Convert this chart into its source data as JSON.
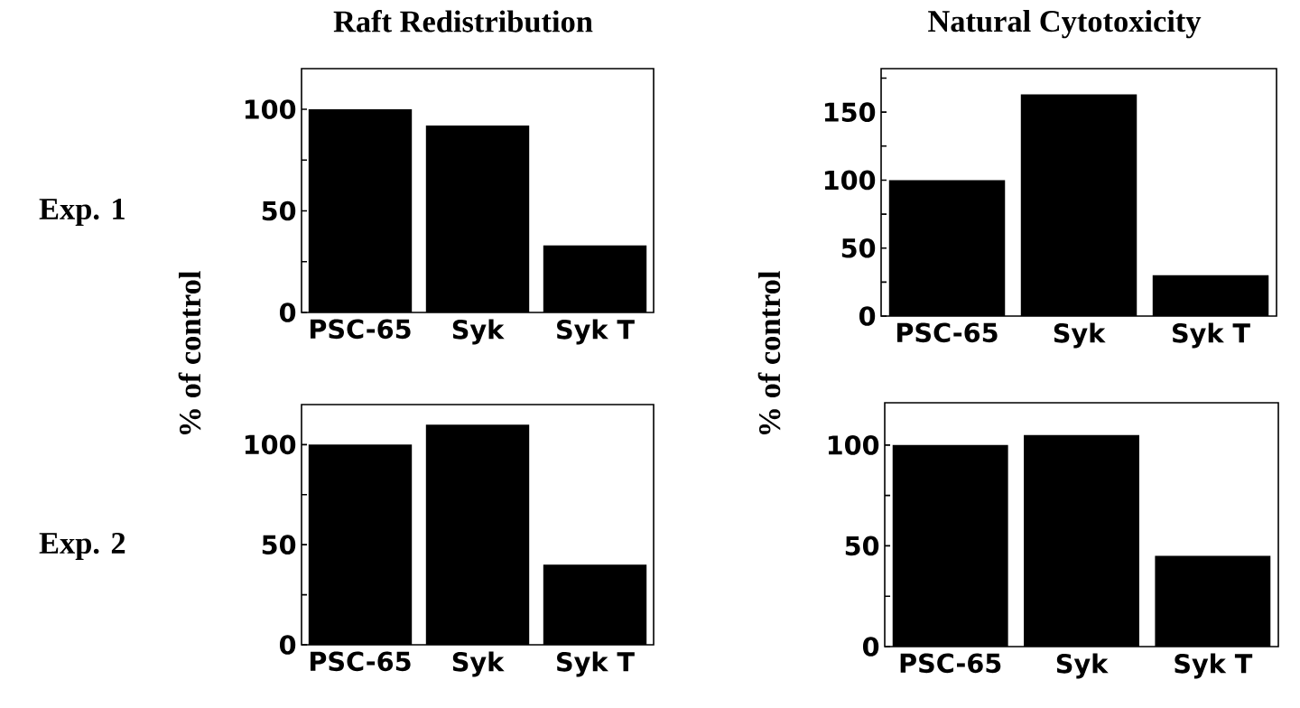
{
  "chart_data": [
    {
      "type": "bar",
      "title": "Raft Redistribution",
      "ylabel": "% of control",
      "annotations": [
        "Exp. 1"
      ],
      "categories": [
        "PSC-65",
        "Syk",
        "Syk T"
      ],
      "values": [
        100,
        92,
        33
      ],
      "color": "#000000",
      "ylim": [
        0,
        120
      ],
      "yticks": [
        0,
        {
          "value": 25,
          "label": null
        },
        50,
        {
          "value": 75,
          "label": null
        },
        100
      ]
    },
    {
      "type": "bar",
      "title": "Natural Cytotoxicity",
      "ylabel": "% of control",
      "categories": [
        "PSC-65",
        "Syk",
        "Syk T"
      ],
      "values": [
        100,
        163,
        30
      ],
      "color": "#000000",
      "ylim": [
        0,
        182
      ],
      "yticks": [
        0,
        {
          "value": 25,
          "label": null
        },
        50,
        {
          "value": 75,
          "label": null
        },
        100,
        {
          "value": 125,
          "label": null
        },
        150,
        {
          "value": 175,
          "label": null
        }
      ]
    },
    {
      "type": "bar",
      "annotations": [
        "Exp. 2"
      ],
      "categories": [
        "PSC-65",
        "Syk",
        "Syk T"
      ],
      "values": [
        100,
        110,
        40
      ],
      "color": "#000000",
      "ylim": [
        0,
        120
      ],
      "yticks": [
        0,
        {
          "value": 25,
          "label": null
        },
        50,
        {
          "value": 75,
          "label": null
        },
        100
      ]
    },
    {
      "type": "bar",
      "categories": [
        "PSC-65",
        "Syk",
        "Syk T"
      ],
      "values": [
        100,
        105,
        45
      ],
      "color": "#000000",
      "ylim": [
        0,
        121
      ],
      "yticks": [
        0,
        {
          "value": 25,
          "label": null
        },
        50,
        {
          "value": 75,
          "label": null
        },
        100
      ]
    }
  ]
}
